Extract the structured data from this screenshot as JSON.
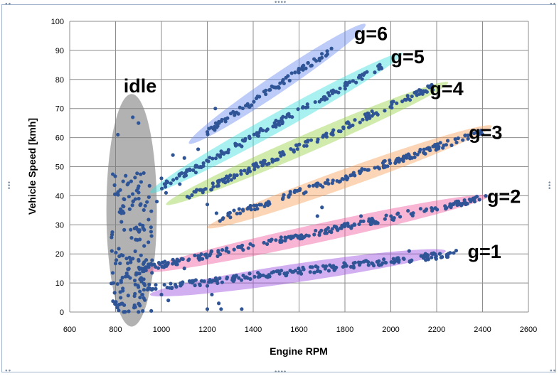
{
  "chart_data": {
    "type": "scatter",
    "xlabel": "Engine RPM",
    "ylabel": "Vehicle Speed [kmh]",
    "xlim": [
      600,
      2600
    ],
    "ylim": [
      0,
      100
    ],
    "x_ticks": [
      "600",
      "800",
      "1000",
      "1200",
      "1400",
      "1600",
      "1800",
      "2000",
      "2200",
      "2400",
      "2600"
    ],
    "y_ticks": [
      "0",
      "10",
      "20",
      "30",
      "40",
      "50",
      "60",
      "70",
      "80",
      "90",
      "100"
    ],
    "grid": true,
    "marker_color": "#2f5597",
    "clusters": [
      {
        "label": "idle",
        "color": "#7f7f7f",
        "rpm_range": [
          780,
          960
        ],
        "speed_range": [
          0,
          67
        ],
        "label_at": [
          835,
          78
        ]
      },
      {
        "label": "g=1",
        "color": "#9b4dde",
        "ratio_kmh_per_rpm": 0.0088,
        "rpm_range": [
          940,
          2300
        ],
        "ellipse_rpm": [
          950,
          2240
        ],
        "ellipse_speed": [
          6,
          21
        ],
        "label_at": [
          2335,
          21
        ]
      },
      {
        "label": "g=2",
        "color": "#f05aa0",
        "ratio_kmh_per_rpm": 0.0163,
        "rpm_range": [
          900,
          2420
        ],
        "ellipse_rpm": [
          920,
          2430
        ],
        "ellipse_speed": [
          14,
          40
        ],
        "label_at": [
          2420,
          40
        ]
      },
      {
        "label": "g=3",
        "color": "#f7a25a",
        "ratio_kmh_per_rpm": 0.0258,
        "rpm_range": [
          1250,
          2400
        ],
        "ellipse_rpm": [
          1200,
          2440
        ],
        "ellipse_speed": [
          29,
          64
        ],
        "label_at": [
          2340,
          62
        ]
      },
      {
        "label": "g=4",
        "color": "#9ad24a",
        "ratio_kmh_per_rpm": 0.0355,
        "rpm_range": [
          1100,
          2200
        ],
        "ellipse_rpm": [
          1020,
          2250
        ],
        "ellipse_speed": [
          37,
          79
        ],
        "label_at": [
          2170,
          77
        ]
      },
      {
        "label": "g=5",
        "color": "#40e0e0",
        "ratio_kmh_per_rpm": 0.0432,
        "rpm_range": [
          1000,
          1970
        ],
        "ellipse_rpm": [
          950,
          2050
        ],
        "ellipse_speed": [
          41,
          89
        ],
        "label_at": [
          2000,
          88
        ]
      },
      {
        "label": "g=6",
        "color": "#6b8bf0",
        "ratio_kmh_per_rpm": 0.0517,
        "rpm_range": [
          1200,
          1750
        ],
        "ellipse_rpm": [
          1120,
          1890
        ],
        "ellipse_speed": [
          58,
          99
        ],
        "label_at": [
          1840,
          96
        ]
      }
    ],
    "outliers": [
      [
        875,
        67
      ],
      [
        900,
        65
      ],
      [
        810,
        61
      ],
      [
        1050,
        54
      ],
      [
        1160,
        56
      ],
      [
        1100,
        53
      ],
      [
        1150,
        48
      ],
      [
        1000,
        46
      ],
      [
        1020,
        41
      ],
      [
        980,
        38
      ],
      [
        1080,
        44
      ],
      [
        1200,
        37
      ],
      [
        1235,
        70
      ],
      [
        1350,
        57
      ],
      [
        1300,
        47
      ],
      [
        1240,
        34
      ],
      [
        1050,
        18
      ],
      [
        1100,
        15
      ],
      [
        1150,
        11
      ],
      [
        1200,
        9
      ],
      [
        1220,
        6
      ],
      [
        1250,
        3
      ],
      [
        1260,
        1
      ],
      [
        1200,
        1
      ],
      [
        1350,
        1
      ],
      [
        1030,
        4
      ],
      [
        1000,
        6
      ],
      [
        1680,
        33
      ],
      [
        1700,
        36
      ],
      [
        2080,
        21
      ],
      [
        1870,
        33
      ]
    ]
  }
}
